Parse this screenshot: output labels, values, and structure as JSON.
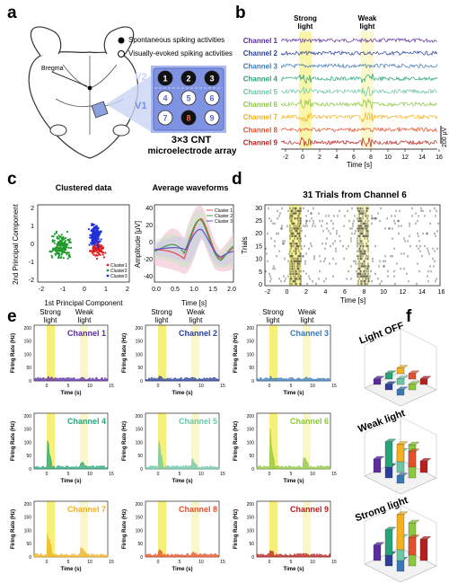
{
  "panels": {
    "a": "a",
    "b": "b",
    "c": "c",
    "d": "d",
    "e": "e",
    "f": "f"
  },
  "panel_a": {
    "bregma": "Bregma",
    "legend_filled": "Spontaneous spiking activities",
    "legend_open": "Visually-evoked spiking activities",
    "v1": "V1",
    "v2": "V2",
    "electrodes": [
      {
        "n": "1",
        "type": "filled"
      },
      {
        "n": "2",
        "type": "filled"
      },
      {
        "n": "3",
        "type": "filled"
      },
      {
        "n": "4",
        "type": "open"
      },
      {
        "n": "5",
        "type": "open"
      },
      {
        "n": "6",
        "type": "open"
      },
      {
        "n": "7",
        "type": "open"
      },
      {
        "n": "8",
        "type": "filled"
      },
      {
        "n": "9",
        "type": "open"
      }
    ],
    "caption_line1": "3×3 CNT",
    "caption_line2": "microelectrode array"
  },
  "panel_b": {
    "strong": [
      "Strong",
      "light"
    ],
    "weak": [
      "Weak",
      "light"
    ],
    "channels": [
      "Channel 1",
      "Channel 2",
      "Channel 3",
      "Channel 4",
      "Channel 5",
      "Channel 6",
      "Channel 7",
      "Channel 8",
      "Channel 9"
    ],
    "channel_colors": [
      "#5a2ca0",
      "#2a3f9b",
      "#3a78b8",
      "#27a37a",
      "#6cc7a4",
      "#8dc63f",
      "#f2b11d",
      "#e3502a",
      "#b7201f"
    ],
    "ticks": [
      "-2",
      "0",
      "2",
      "4",
      "6",
      "8",
      "10",
      "12",
      "14",
      "16"
    ],
    "xlabel": "Time [s]",
    "scalebar": "200 μV"
  },
  "panel_c1": {
    "title": "Clustered data",
    "xlabel": "1st Principal Component",
    "ylabel": "2nd Principal Component",
    "xticks": [
      "-2",
      "-1",
      "0",
      "1",
      "2"
    ],
    "yticks": [
      "-2",
      "-1",
      "0",
      "1",
      "2"
    ],
    "legend": [
      "Cluster1",
      "Cluster2",
      "Cluster3"
    ],
    "colors": [
      "#e02020",
      "#1f9a2a",
      "#2030d8"
    ]
  },
  "panel_c2": {
    "title": "Average waveforms",
    "xlabel": "Time [s]",
    "ylabel": "Amplitude [μV]",
    "xticks": [
      "0.0",
      "0.5",
      "1.0",
      "1.5",
      "2.0"
    ],
    "yticks": [
      "-40",
      "-20",
      "0",
      "20",
      "40"
    ],
    "legend": [
      "Cluster 1",
      "Cluster 2",
      "Cluster 3"
    ],
    "colors": [
      "#e85050",
      "#3aa040",
      "#6050c8"
    ]
  },
  "panel_d": {
    "title": "31 Trials from Channel 6",
    "ylabel": "Trials",
    "xlabel": "Time [s]",
    "xticks": [
      "-2",
      "0",
      "2",
      "4",
      "6",
      "8",
      "10",
      "12",
      "14",
      "16"
    ],
    "yticks": [
      "0",
      "5",
      "10",
      "15",
      "20",
      "25",
      "30"
    ]
  },
  "panel_e": {
    "strong": [
      "Strong",
      "light"
    ],
    "weak": [
      "Weak",
      "light"
    ],
    "ylabel": "Firing Rate (Hz)",
    "xlabel": "Time (s)",
    "yticks": [
      "0",
      "50",
      "100",
      "150",
      "200"
    ],
    "xticks": [
      "0",
      "5",
      "10",
      "15"
    ],
    "channels": [
      "Channel 1",
      "Channel 2",
      "Channel 3",
      "Channel 4",
      "Channel 5",
      "Channel 6",
      "Channel 7",
      "Channel 8",
      "Channel 9"
    ]
  },
  "panel_f": {
    "titles": [
      "Light OFF",
      "Weak light",
      "Strong light"
    ]
  }
}
